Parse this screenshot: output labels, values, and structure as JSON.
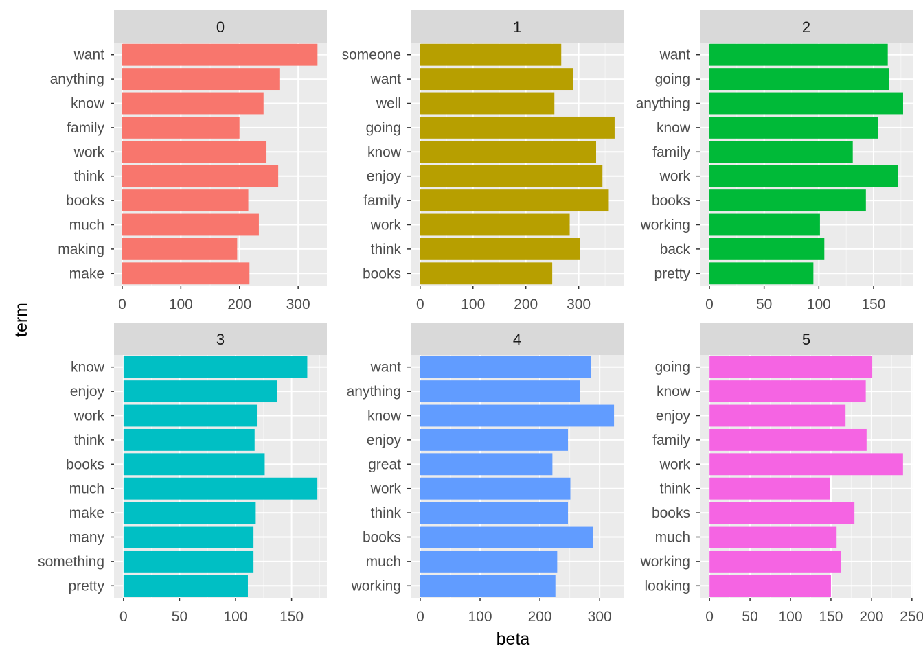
{
  "chart_data": {
    "type": "bar",
    "orientation": "horizontal",
    "xlabel": "beta",
    "ylabel": "term",
    "grid": true,
    "legend": "none",
    "facets": [
      {
        "label": "0",
        "color": "#F8766D",
        "terms": [
          "want",
          "anything",
          "know",
          "family",
          "work",
          "think",
          "books",
          "much",
          "making",
          "make"
        ],
        "values": [
          333,
          268,
          241,
          200,
          246,
          266,
          215,
          233,
          196,
          217
        ],
        "xlim": [
          -14,
          349
        ],
        "xticks": [
          0,
          100,
          200,
          300
        ]
      },
      {
        "label": "1",
        "color": "#B79F00",
        "terms": [
          "someone",
          "want",
          "well",
          "going",
          "know",
          "enjoy",
          "family",
          "work",
          "think",
          "books"
        ],
        "values": [
          267,
          289,
          254,
          368,
          333,
          345,
          357,
          283,
          302,
          250
        ],
        "xlim": [
          -18,
          385
        ],
        "xticks": [
          0,
          100,
          200,
          300
        ]
      },
      {
        "label": "2",
        "color": "#00BA38",
        "terms": [
          "want",
          "going",
          "anything",
          "know",
          "family",
          "work",
          "books",
          "working",
          "back",
          "pretty"
        ],
        "values": [
          163,
          164,
          177,
          154,
          131,
          172,
          143,
          101,
          105,
          95
        ],
        "xlim": [
          -8.8,
          185.8
        ],
        "xticks": [
          0,
          50,
          100,
          150
        ]
      },
      {
        "label": "3",
        "color": "#00BFC4",
        "terms": [
          "know",
          "enjoy",
          "work",
          "think",
          "books",
          "much",
          "make",
          "many",
          "something",
          "pretty"
        ],
        "values": [
          164,
          137,
          119,
          117,
          126,
          173,
          118,
          116,
          116,
          111
        ],
        "xlim": [
          -8.5,
          181.5
        ],
        "xticks": [
          0,
          50,
          100,
          150
        ]
      },
      {
        "label": "4",
        "color": "#619CFF",
        "terms": [
          "want",
          "anything",
          "know",
          "enjoy",
          "great",
          "work",
          "think",
          "books",
          "much",
          "working"
        ],
        "values": [
          286,
          267,
          324,
          247,
          221,
          251,
          247,
          289,
          229,
          226
        ],
        "xlim": [
          -16,
          340
        ],
        "xticks": [
          0,
          100,
          200,
          300
        ]
      },
      {
        "label": "5",
        "color": "#F564E3",
        "terms": [
          "going",
          "know",
          "enjoy",
          "family",
          "work",
          "think",
          "books",
          "much",
          "working",
          "looking"
        ],
        "values": [
          201,
          193,
          168,
          194,
          239,
          149,
          179,
          157,
          162,
          150
        ],
        "xlim": [
          -12,
          251
        ],
        "xticks": [
          0,
          50,
          100,
          150,
          200,
          250
        ]
      }
    ]
  }
}
